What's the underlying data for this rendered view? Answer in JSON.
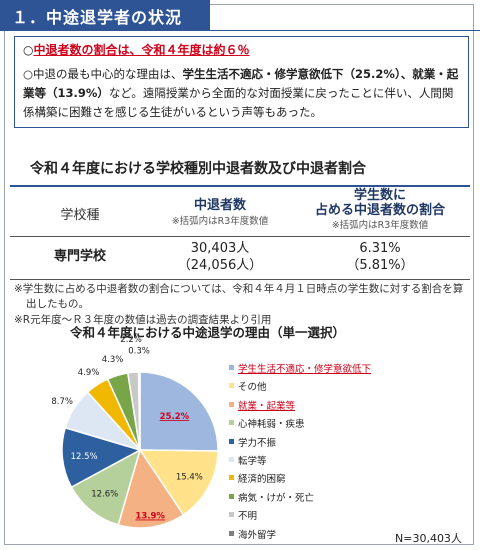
{
  "header": {
    "title": "１．中途退学者の状況"
  },
  "summary": {
    "line1_prefix": "○",
    "line1_red": "中退者数の割合は、令和４年度は約６％",
    "line2_part1": "○中退の最も中心的な理由は、",
    "line2_bold1": "学生生活不適応・修学意欲低下（25.2%）、就業・起業等（13.9%）",
    "line2_part2": "など。遠隔授業から全面的な対面授業に戻ったことに伴い、人間関係構築に困難さを感じる生徒がいるという声等もあった。"
  },
  "table": {
    "title": "令和４年度における学校種別中退者数及び中退者割合",
    "col1_header": "学校種",
    "col2_header": "中退者数",
    "col2_sub": "※括弧内はR3年度数値",
    "col3_header_line1": "学生数に",
    "col3_header_line2": "占める中退者数の割合",
    "col3_sub": "※括弧内はR3年度数値",
    "row": {
      "school_type": "専門学校",
      "dropouts": "30,403人",
      "dropouts_prev": "（24,056人）",
      "ratio": "6.31%",
      "ratio_prev": "（5.81%）"
    }
  },
  "notes": {
    "note1_line1": "※学生数に占める中退者数の割合については、令和４年４月１日時点の学生数に対する割合を算",
    "note1_line2": "出したもの。",
    "note2": "※R元年度～Ｒ３年度の数値は過去の調査結果より引用"
  },
  "chart_data": {
    "type": "pie",
    "title": "令和４年度における中途退学の理由（単一選択）",
    "categories": [
      "学生生活不適応・修学意欲低下",
      "その他",
      "就業・起業等",
      "心神耗弱・疾患",
      "学力不振",
      "転学等",
      "経済的困窮",
      "病気・けが・死亡",
      "不明",
      "海外留学"
    ],
    "values": [
      25.2,
      15.4,
      13.9,
      12.6,
      12.5,
      8.7,
      4.9,
      4.3,
      2.2,
      0.3
    ],
    "value_labels": [
      "25.2%",
      "15.4%",
      "13.9%",
      "12.6%",
      "12.5%",
      "8.7%",
      "4.9%",
      "4.3%",
      "2.2%",
      "0.3%"
    ],
    "colors": [
      "#9db7df",
      "#ffe289",
      "#f4b183",
      "#b5d09a",
      "#2e5f9e",
      "#dde7f3",
      "#f0b800",
      "#77a548",
      "#c8c8c8",
      "#7f7f7f"
    ],
    "highlighted": [
      "学生生活不適応・修学意欲低下",
      "就業・起業等"
    ],
    "total_label": "N=30,403人"
  }
}
